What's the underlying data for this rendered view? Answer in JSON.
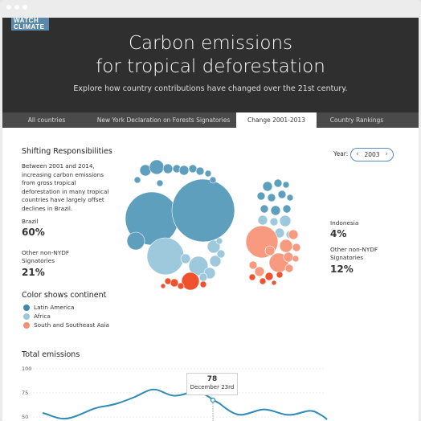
{
  "header": {
    "logo_line1": "WATCH",
    "logo_line2": "CLIMATE",
    "title_line1": "Carbon emissions",
    "title_line2": "for tropical deforestation",
    "subtitle": "Explore how country contributions have changed over the 21st century."
  },
  "tabs": [
    {
      "label": "All countries",
      "active": false
    },
    {
      "label": "New York Declaration on Forests Signatories",
      "active": false
    },
    {
      "label": "Change 2001-2013",
      "active": true
    },
    {
      "label": "Country Rankings",
      "active": false
    }
  ],
  "shifting": {
    "title": "Shifting Responsibilities",
    "description": "Between 2001 and 2014, increasing carbon emissions from gross tropical deforestation in many tropical countries have largely offset declines in Brazil.",
    "year_label": "Year:",
    "year_value": "2003",
    "stats_left": [
      {
        "label": "Brazil",
        "value": "60%"
      },
      {
        "label": "Other non-NYDF Signatories",
        "value": "21%"
      }
    ],
    "stats_right": [
      {
        "label": "Indonesia",
        "value": "4%"
      },
      {
        "label": "Other non-NYDF Signatories",
        "value": "12%"
      }
    ]
  },
  "legend": {
    "title": "Color shows continent",
    "items": [
      {
        "label": "Latin America",
        "color": "#3f86b0"
      },
      {
        "label": "Africa",
        "color": "#9dc7dc"
      },
      {
        "label": "South and Southeast Asia",
        "color": "#f68f72"
      }
    ]
  },
  "total": {
    "title": "Total emissions",
    "y_ticks": [
      "100",
      "75",
      "50"
    ],
    "tooltip_value": "78",
    "tooltip_date": "December 23rd"
  },
  "colors": {
    "latin_america": "#5e9fbd",
    "africa": "#9ec8dc",
    "asia": "#f79a80",
    "asia_dark": "#f0522e",
    "hero_bg": "#2f2f2f",
    "tab_bg": "#4a4a4a",
    "line": "#2e8ab8"
  }
}
